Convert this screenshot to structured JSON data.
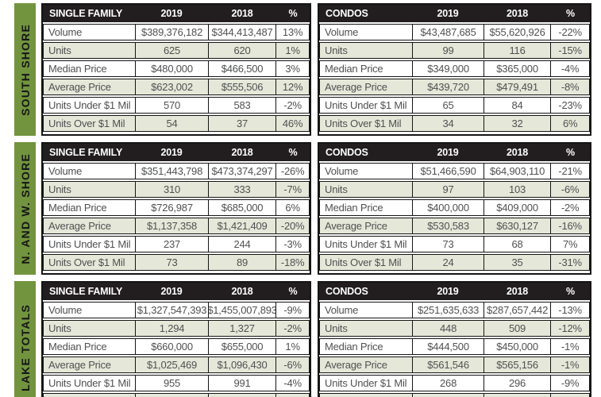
{
  "colors": {
    "green": "#72943e",
    "header_bg": "#221e1f",
    "row_alt": "#e5e8d8",
    "border": "#151515",
    "text": "#4f5052",
    "page_bg": "#ffffff"
  },
  "sections": [
    {
      "region": "SOUTH SHORE",
      "tables": [
        {
          "title": "SINGLE FAMILY",
          "col_2019": "2019",
          "col_2018": "2018",
          "col_pct": "%",
          "rows": [
            {
              "label": "Volume",
              "y2019": "$389,376,182",
              "y2018": "$344,413,487",
              "pct": "13%"
            },
            {
              "label": "Units",
              "y2019": "625",
              "y2018": "620",
              "pct": "1%"
            },
            {
              "label": "Median Price",
              "y2019": "$480,000",
              "y2018": "$466,500",
              "pct": "3%"
            },
            {
              "label": "Average Price",
              "y2019": "$623,002",
              "y2018": "$555,506",
              "pct": "12%"
            },
            {
              "label": "Units Under $1 Mil",
              "y2019": "570",
              "y2018": "583",
              "pct": "-2%"
            },
            {
              "label": "Units Over $1 Mil",
              "y2019": "54",
              "y2018": "37",
              "pct": "46%"
            }
          ]
        },
        {
          "title": "CONDOS",
          "col_2019": "2019",
          "col_2018": "2018",
          "col_pct": "%",
          "rows": [
            {
              "label": "Volume",
              "y2019": "$43,487,685",
              "y2018": "$55,620,926",
              "pct": "-22%"
            },
            {
              "label": "Units",
              "y2019": "99",
              "y2018": "116",
              "pct": "-15%"
            },
            {
              "label": "Median Price",
              "y2019": "$349,000",
              "y2018": "$365,000",
              "pct": "-4%"
            },
            {
              "label": "Average Price",
              "y2019": "$439,720",
              "y2018": "$479,491",
              "pct": "-8%"
            },
            {
              "label": "Units Under $1 Mil",
              "y2019": "65",
              "y2018": "84",
              "pct": "-23%"
            },
            {
              "label": "Units Over $1 Mil",
              "y2019": "34",
              "y2018": "32",
              "pct": "6%"
            }
          ]
        }
      ]
    },
    {
      "region": "N. AND W. SHORE",
      "tables": [
        {
          "title": "SINGLE FAMILY",
          "col_2019": "2019",
          "col_2018": "2018",
          "col_pct": "%",
          "rows": [
            {
              "label": "Volume",
              "y2019": "$351,443,798",
              "y2018": "$473,374,297",
              "pct": "-26%"
            },
            {
              "label": "Units",
              "y2019": "310",
              "y2018": "333",
              "pct": "-7%"
            },
            {
              "label": "Median Price",
              "y2019": "$726,987",
              "y2018": "$685,000",
              "pct": "6%"
            },
            {
              "label": "Average Price",
              "y2019": "$1,137,358",
              "y2018": "$1,421,409",
              "pct": "-20%"
            },
            {
              "label": "Units Under $1 Mil",
              "y2019": "237",
              "y2018": "244",
              "pct": "-3%"
            },
            {
              "label": "Units Over $1 Mil",
              "y2019": "73",
              "y2018": "89",
              "pct": "-18%"
            }
          ]
        },
        {
          "title": "CONDOS",
          "col_2019": "2019",
          "col_2018": "2018",
          "col_pct": "%",
          "rows": [
            {
              "label": "Volume",
              "y2019": "$51,466,590",
              "y2018": "$64,903,110",
              "pct": "-21%"
            },
            {
              "label": "Units",
              "y2019": "97",
              "y2018": "103",
              "pct": "-6%"
            },
            {
              "label": "Median Price",
              "y2019": "$400,000",
              "y2018": "$409,000",
              "pct": "-2%"
            },
            {
              "label": "Average Price",
              "y2019": "$530,583",
              "y2018": "$630,127",
              "pct": "-16%"
            },
            {
              "label": "Units Under $1 Mil",
              "y2019": "73",
              "y2018": "68",
              "pct": "7%"
            },
            {
              "label": "Units Over $1 Mil",
              "y2019": "24",
              "y2018": "35",
              "pct": "-31%"
            }
          ]
        }
      ]
    },
    {
      "region": "LAKE TOTALS",
      "tables": [
        {
          "title": "SINGLE FAMILY",
          "col_2019": "2019",
          "col_2018": "2018",
          "col_pct": "%",
          "rows": [
            {
              "label": "Volume",
              "y2019": "$1,327,547,393",
              "y2018": "$1,455,007,893",
              "pct": "-9%"
            },
            {
              "label": "Units",
              "y2019": "1,294",
              "y2018": "1,327",
              "pct": "-2%"
            },
            {
              "label": "Median Price",
              "y2019": "$660,000",
              "y2018": "$655,000",
              "pct": "1%"
            },
            {
              "label": "Average Price",
              "y2019": "$1,025,469",
              "y2018": "$1,096,430",
              "pct": "-6%"
            },
            {
              "label": "Units Under $1 Mil",
              "y2019": "955",
              "y2018": "991",
              "pct": "-4%"
            },
            {
              "label": "",
              "y2019": "",
              "y2018": "",
              "pct": ""
            }
          ]
        },
        {
          "title": "CONDOS",
          "col_2019": "2019",
          "col_2018": "2018",
          "col_pct": "%",
          "rows": [
            {
              "label": "Volume",
              "y2019": "$251,635,633",
              "y2018": "$287,657,442",
              "pct": "-13%"
            },
            {
              "label": "Units",
              "y2019": "448",
              "y2018": "509",
              "pct": "-12%"
            },
            {
              "label": "Median Price",
              "y2019": "$444,500",
              "y2018": "$450,000",
              "pct": "-1%"
            },
            {
              "label": "Average Price",
              "y2019": "$561,546",
              "y2018": "$565,156",
              "pct": "-1%"
            },
            {
              "label": "Units Under $1 Mil",
              "y2019": "268",
              "y2018": "296",
              "pct": "-9%"
            },
            {
              "label": "",
              "y2019": "",
              "y2018": "",
              "pct": ""
            }
          ]
        }
      ]
    }
  ]
}
